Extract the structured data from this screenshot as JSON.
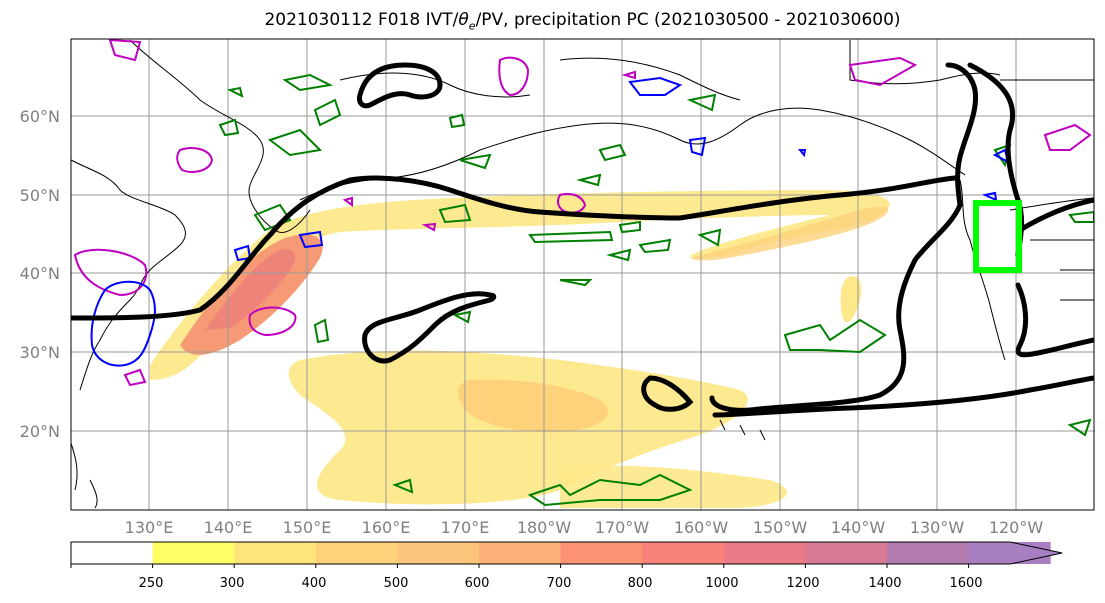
{
  "title": {
    "main": "2021030112 F018 IVT/",
    "theta": "θ",
    "theta_sub": "e",
    "rest": "/PV, precipitation PC (2021030500 - 2021030600)"
  },
  "map": {
    "lat_labels": [
      "60°N",
      "50°N",
      "40°N",
      "30°N",
      "20°N"
    ],
    "lon_labels": [
      "130°E",
      "140°E",
      "150°E",
      "160°E",
      "170°E",
      "180°W",
      "170°W",
      "160°W",
      "150°W",
      "140°W",
      "130°W",
      "120°W"
    ],
    "colors": {
      "theta_e_contour": "#000000",
      "pv_contour_positive": "#008000",
      "pv_contour_magenta": "#c000c0",
      "pv_contour_blue": "#0000ff",
      "target_box": "#00ff00",
      "coastline": "#000000",
      "gridline": "#999999"
    }
  },
  "colorbar": {
    "ticks": [
      "250",
      "300",
      "400",
      "500",
      "600",
      "700",
      "800",
      "1000",
      "1200",
      "1400",
      "1600"
    ],
    "colors": [
      "#ffffff",
      "#ffff66",
      "#fee57a",
      "#fdd27a",
      "#fdc47b",
      "#fdb27a",
      "#fc9473",
      "#f9827a",
      "#e97c86",
      "#d87a94",
      "#b27bb0",
      "#a880c2"
    ]
  }
}
